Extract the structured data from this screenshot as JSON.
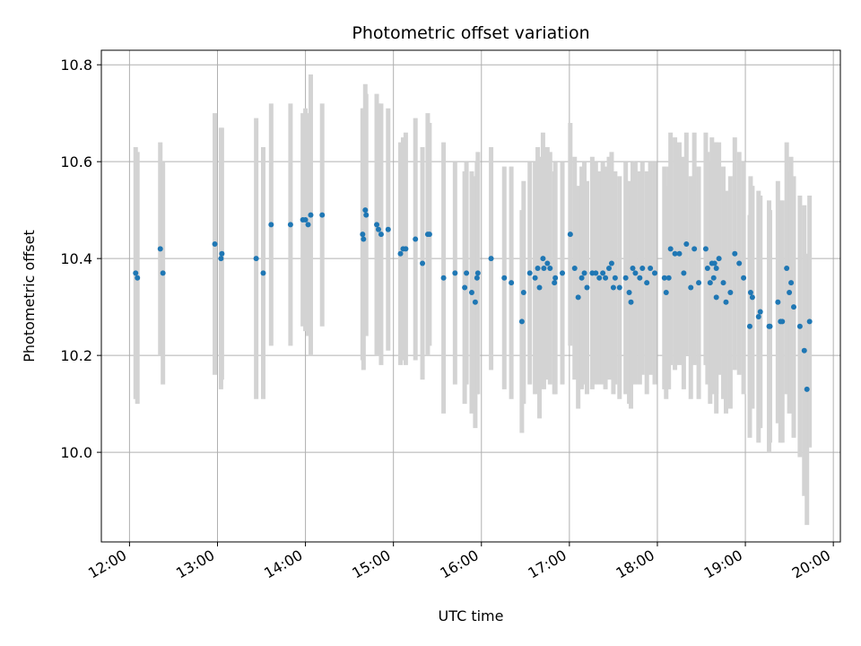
{
  "chart_data": {
    "type": "scatter",
    "title": "Photometric offset variation",
    "xlabel": "UTC time",
    "ylabel": "Photometric offset",
    "x_unit": "hours UTC",
    "xlim": [
      11.68,
      20.08
    ],
    "ylim": [
      9.815,
      10.83
    ],
    "xticks": [
      {
        "value": 12,
        "label": "12:00"
      },
      {
        "value": 13,
        "label": "13:00"
      },
      {
        "value": 14,
        "label": "14:00"
      },
      {
        "value": 15,
        "label": "15:00"
      },
      {
        "value": 16,
        "label": "16:00"
      },
      {
        "value": 17,
        "label": "17:00"
      },
      {
        "value": 18,
        "label": "18:00"
      },
      {
        "value": 19,
        "label": "19:00"
      },
      {
        "value": 20,
        "label": "20:00"
      }
    ],
    "yticks": [
      {
        "value": 10.0,
        "label": "10.0"
      },
      {
        "value": 10.2,
        "label": "10.2"
      },
      {
        "value": 10.4,
        "label": "10.4"
      },
      {
        "value": 10.6,
        "label": "10.6"
      },
      {
        "value": 10.8,
        "label": "10.8"
      }
    ],
    "grid": true,
    "marker_color": "#1f77b4",
    "errorbar_color": "#d3d3d3",
    "x_time_labels": [
      "12:05",
      "12:05",
      "12:21",
      "12:23",
      "12:58",
      "13:03",
      "13:03",
      "13:27",
      "13:32",
      "13:37",
      "13:50",
      "13:58",
      "14:00",
      "14:02",
      "14:05",
      "14:12",
      "14:39",
      "14:40",
      "14:41",
      "14:41",
      "14:49",
      "14:50",
      "14:52",
      "14:57",
      "15:05",
      "15:07",
      "15:09",
      "15:15",
      "15:20",
      "15:24",
      "15:25",
      "15:34",
      "15:42",
      "15:49",
      "15:50",
      "15:54",
      "15:57",
      "15:57",
      "15:58",
      "16:07",
      "16:16",
      "16:20",
      "16:28",
      "16:29",
      "16:33",
      "16:37",
      "16:39",
      "16:40",
      "16:42",
      "16:42",
      "16:45",
      "16:47",
      "16:50",
      "16:50",
      "16:55",
      "17:01",
      "17:04",
      "17:06",
      "17:08",
      "17:10",
      "17:12",
      "17:16",
      "17:18",
      "17:20",
      "17:23",
      "17:25",
      "17:27",
      "17:29",
      "17:30",
      "17:31",
      "17:34",
      "17:39",
      "17:41",
      "17:42",
      "17:43",
      "17:45",
      "17:48",
      "17:50",
      "17:53",
      "17:55",
      "17:58",
      "18:05",
      "18:06",
      "18:08",
      "18:09",
      "18:12",
      "18:15",
      "18:18",
      "18:20",
      "18:23",
      "18:25",
      "18:28",
      "18:33",
      "18:34",
      "18:36",
      "18:37",
      "18:38",
      "18:39",
      "18:40",
      "18:40",
      "18:42",
      "18:45",
      "18:47",
      "18:50",
      "18:53",
      "18:56",
      "18:59",
      "19:03",
      "19:04",
      "19:05",
      "19:09",
      "19:10",
      "19:16",
      "19:17",
      "19:22",
      "19:24",
      "19:25",
      "19:28",
      "19:30",
      "19:31",
      "19:33",
      "19:37",
      "19:40",
      "19:42",
      "19:44"
    ],
    "x": [
      12.07,
      12.09,
      12.35,
      12.38,
      12.97,
      13.04,
      13.05,
      13.44,
      13.52,
      13.61,
      13.83,
      13.97,
      14.0,
      14.03,
      14.06,
      14.19,
      14.65,
      14.66,
      14.68,
      14.69,
      14.81,
      14.83,
      14.86,
      14.94,
      15.08,
      15.11,
      15.14,
      15.25,
      15.33,
      15.39,
      15.41,
      15.57,
      15.7,
      15.81,
      15.83,
      15.89,
      15.93,
      15.95,
      15.96,
      16.11,
      16.26,
      16.34,
      16.46,
      16.48,
      16.55,
      16.61,
      16.64,
      16.66,
      16.7,
      16.71,
      16.75,
      16.78,
      16.83,
      16.84,
      16.92,
      17.01,
      17.06,
      17.1,
      17.14,
      17.17,
      17.2,
      17.26,
      17.3,
      17.34,
      17.38,
      17.41,
      17.45,
      17.48,
      17.5,
      17.52,
      17.57,
      17.64,
      17.68,
      17.7,
      17.72,
      17.75,
      17.8,
      17.83,
      17.88,
      17.92,
      17.97,
      18.08,
      18.1,
      18.13,
      18.15,
      18.2,
      18.25,
      18.3,
      18.33,
      18.38,
      18.42,
      18.47,
      18.55,
      18.57,
      18.6,
      18.62,
      18.64,
      18.65,
      18.67,
      18.67,
      18.7,
      18.75,
      18.78,
      18.83,
      18.88,
      18.93,
      18.98,
      19.05,
      19.06,
      19.08,
      19.15,
      19.17,
      19.27,
      19.28,
      19.37,
      19.4,
      19.42,
      19.47,
      19.5,
      19.52,
      19.55,
      19.62,
      19.67,
      19.7,
      19.73
    ],
    "y": [
      10.37,
      10.36,
      10.42,
      10.37,
      10.43,
      10.4,
      10.41,
      10.4,
      10.37,
      10.47,
      10.47,
      10.48,
      10.48,
      10.47,
      10.49,
      10.49,
      10.45,
      10.44,
      10.5,
      10.49,
      10.47,
      10.46,
      10.45,
      10.46,
      10.41,
      10.42,
      10.42,
      10.44,
      10.39,
      10.45,
      10.45,
      10.36,
      10.37,
      10.34,
      10.37,
      10.33,
      10.31,
      10.36,
      10.37,
      10.4,
      10.36,
      10.35,
      10.27,
      10.33,
      10.37,
      10.36,
      10.38,
      10.34,
      10.4,
      10.38,
      10.39,
      10.38,
      10.35,
      10.36,
      10.37,
      10.45,
      10.38,
      10.32,
      10.36,
      10.37,
      10.34,
      10.37,
      10.37,
      10.36,
      10.37,
      10.36,
      10.38,
      10.39,
      10.34,
      10.36,
      10.34,
      10.36,
      10.33,
      10.31,
      10.38,
      10.37,
      10.36,
      10.38,
      10.35,
      10.38,
      10.37,
      10.36,
      10.33,
      10.36,
      10.42,
      10.41,
      10.41,
      10.37,
      10.43,
      10.34,
      10.42,
      10.35,
      10.42,
      10.38,
      10.35,
      10.39,
      10.36,
      10.39,
      10.38,
      10.32,
      10.4,
      10.35,
      10.31,
      10.33,
      10.41,
      10.39,
      10.36,
      10.26,
      10.33,
      10.32,
      10.28,
      10.29,
      10.26,
      10.26,
      10.31,
      10.27,
      10.27,
      10.38,
      10.33,
      10.35,
      10.3,
      10.26,
      10.21,
      10.13,
      10.27
    ],
    "err": [
      0.26,
      0.26,
      0.22,
      0.23,
      0.27,
      0.27,
      0.26,
      0.29,
      0.26,
      0.25,
      0.25,
      0.22,
      0.23,
      0.23,
      0.29,
      0.23,
      0.26,
      0.27,
      0.26,
      0.25,
      0.27,
      0.26,
      0.27,
      0.25,
      0.23,
      0.23,
      0.24,
      0.25,
      0.24,
      0.25,
      0.23,
      0.28,
      0.23,
      0.24,
      0.23,
      0.25,
      0.26,
      0.24,
      0.25,
      0.23,
      0.23,
      0.24,
      0.23,
      0.23,
      0.23,
      0.24,
      0.25,
      0.27,
      0.26,
      0.25,
      0.24,
      0.24,
      0.23,
      0.24,
      0.23,
      0.23,
      0.23,
      0.23,
      0.23,
      0.23,
      0.22,
      0.24,
      0.23,
      0.22,
      0.23,
      0.23,
      0.23,
      0.23,
      0.22,
      0.22,
      0.23,
      0.24,
      0.23,
      0.22,
      0.22,
      0.23,
      0.22,
      0.22,
      0.23,
      0.22,
      0.23,
      0.23,
      0.22,
      0.23,
      0.24,
      0.24,
      0.23,
      0.24,
      0.23,
      0.23,
      0.24,
      0.24,
      0.24,
      0.24,
      0.25,
      0.26,
      0.24,
      0.25,
      0.26,
      0.24,
      0.24,
      0.24,
      0.23,
      0.24,
      0.24,
      0.23,
      0.24,
      0.23,
      0.24,
      0.23,
      0.26,
      0.24,
      0.26,
      0.24,
      0.25,
      0.25,
      0.25,
      0.26,
      0.25,
      0.26,
      0.27,
      0.27,
      0.3,
      0.28,
      0.26
    ]
  }
}
